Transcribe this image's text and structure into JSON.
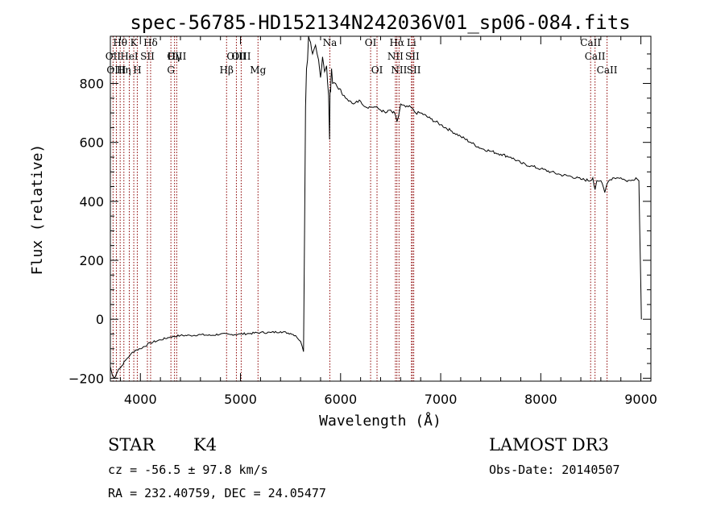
{
  "chart_data": {
    "type": "line",
    "title": "spec-56785-HD152134N242036V01_sp06-084.fits",
    "xlabel": "Wavelength (Å)",
    "ylabel": "Flux (relative)",
    "xlim": [
      3700,
      9100
    ],
    "ylim": [
      -210,
      960
    ],
    "xticks": [
      4000,
      5000,
      6000,
      7000,
      8000,
      9000
    ],
    "yticks": [
      -200,
      0,
      200,
      400,
      600,
      800
    ],
    "grid": false,
    "series": [
      {
        "name": "spectrum",
        "x": [
          3700,
          3720,
          3740,
          3760,
          3780,
          3800,
          3850,
          3900,
          3950,
          4000,
          4100,
          4200,
          4300,
          4400,
          4500,
          4600,
          4700,
          4800,
          4900,
          5000,
          5100,
          5200,
          5300,
          5400,
          5500,
          5550,
          5600,
          5630,
          5650,
          5660,
          5670,
          5680,
          5700,
          5720,
          5750,
          5780,
          5800,
          5820,
          5840,
          5860,
          5880,
          5890,
          5895,
          5900,
          5905,
          5910,
          5920,
          5950,
          5980,
          6000,
          6020,
          6050,
          6080,
          6100,
          6130,
          6160,
          6200,
          6250,
          6300,
          6350,
          6400,
          6450,
          6500,
          6520,
          6540,
          6563,
          6580,
          6600,
          6650,
          6700,
          6750,
          6800,
          6900,
          7000,
          7100,
          7200,
          7300,
          7400,
          7500,
          7600,
          7700,
          7800,
          7900,
          8000,
          8100,
          8200,
          8300,
          8400,
          8498,
          8520,
          8542,
          8560,
          8600,
          8640,
          8662,
          8680,
          8720,
          8760,
          8800,
          8850,
          8900,
          8950,
          8980,
          9000,
          9005
        ],
        "y": [
          -160,
          -190,
          -200,
          -185,
          -170,
          -165,
          -140,
          -120,
          -105,
          -100,
          -80,
          -70,
          -60,
          -55,
          -55,
          -52,
          -55,
          -50,
          -52,
          -50,
          -48,
          -45,
          -45,
          -42,
          -48,
          -55,
          -75,
          -110,
          720,
          850,
          880,
          960,
          940,
          900,
          930,
          880,
          820,
          890,
          840,
          860,
          760,
          610,
          780,
          770,
          820,
          850,
          800,
          800,
          780,
          780,
          760,
          750,
          740,
          740,
          730,
          740,
          740,
          720,
          720,
          720,
          710,
          700,
          710,
          700,
          700,
          670,
          690,
          730,
          720,
          720,
          700,
          700,
          680,
          660,
          640,
          620,
          600,
          580,
          570,
          560,
          550,
          530,
          520,
          510,
          500,
          490,
          485,
          475,
          470,
          480,
          440,
          470,
          470,
          430,
          460,
          470,
          480,
          480,
          480,
          470,
          470,
          480,
          470,
          100,
          0
        ]
      }
    ],
    "lines": [
      {
        "label": "Hθ",
        "x": 3798
      },
      {
        "label": "OII",
        "x": 3727
      },
      {
        "label": "OIII",
        "x": 3760
      },
      {
        "label": "Hη",
        "x": 3835
      },
      {
        "label": "K",
        "x": 3934
      },
      {
        "label": "HeI",
        "x": 3889
      },
      {
        "label": "H",
        "x": 3969
      },
      {
        "label": "SII",
        "x": 4070
      },
      {
        "label": "Hδ",
        "x": 4102
      },
      {
        "label": "OIII",
        "x": 4363
      },
      {
        "label": "Hγ",
        "x": 4341
      },
      {
        "label": "G",
        "x": 4305
      },
      {
        "label": "Hβ",
        "x": 4861
      },
      {
        "label": "OIII",
        "x": 4959
      },
      {
        "label": "OIII",
        "x": 5007
      },
      {
        "label": "Mg",
        "x": 5175
      },
      {
        "label": "Na",
        "x": 5893
      },
      {
        "label": "OI",
        "x": 6300
      },
      {
        "label": "OI",
        "x": 6364
      },
      {
        "label": "Hα",
        "x": 6563
      },
      {
        "label": "NII",
        "x": 6548
      },
      {
        "label": "NII",
        "x": 6584
      },
      {
        "label": "Li",
        "x": 6708
      },
      {
        "label": "SII",
        "x": 6717
      },
      {
        "label": "SII",
        "x": 6731
      },
      {
        "label": "CaII",
        "x": 8498
      },
      {
        "label": "CaII",
        "x": 8542
      },
      {
        "label": "CaII",
        "x": 8662
      }
    ],
    "line_color": "#000000",
    "marker_color": "#8b0000",
    "background": "#ffffff"
  },
  "info": {
    "object_class": "STAR",
    "subclass": "K4",
    "survey": "LAMOST DR3",
    "cz": "cz = -56.5 ± 97.8 km/s",
    "obs_date": "Obs-Date: 20140507",
    "radec": "RA = 232.40759, DEC =  24.05477"
  }
}
